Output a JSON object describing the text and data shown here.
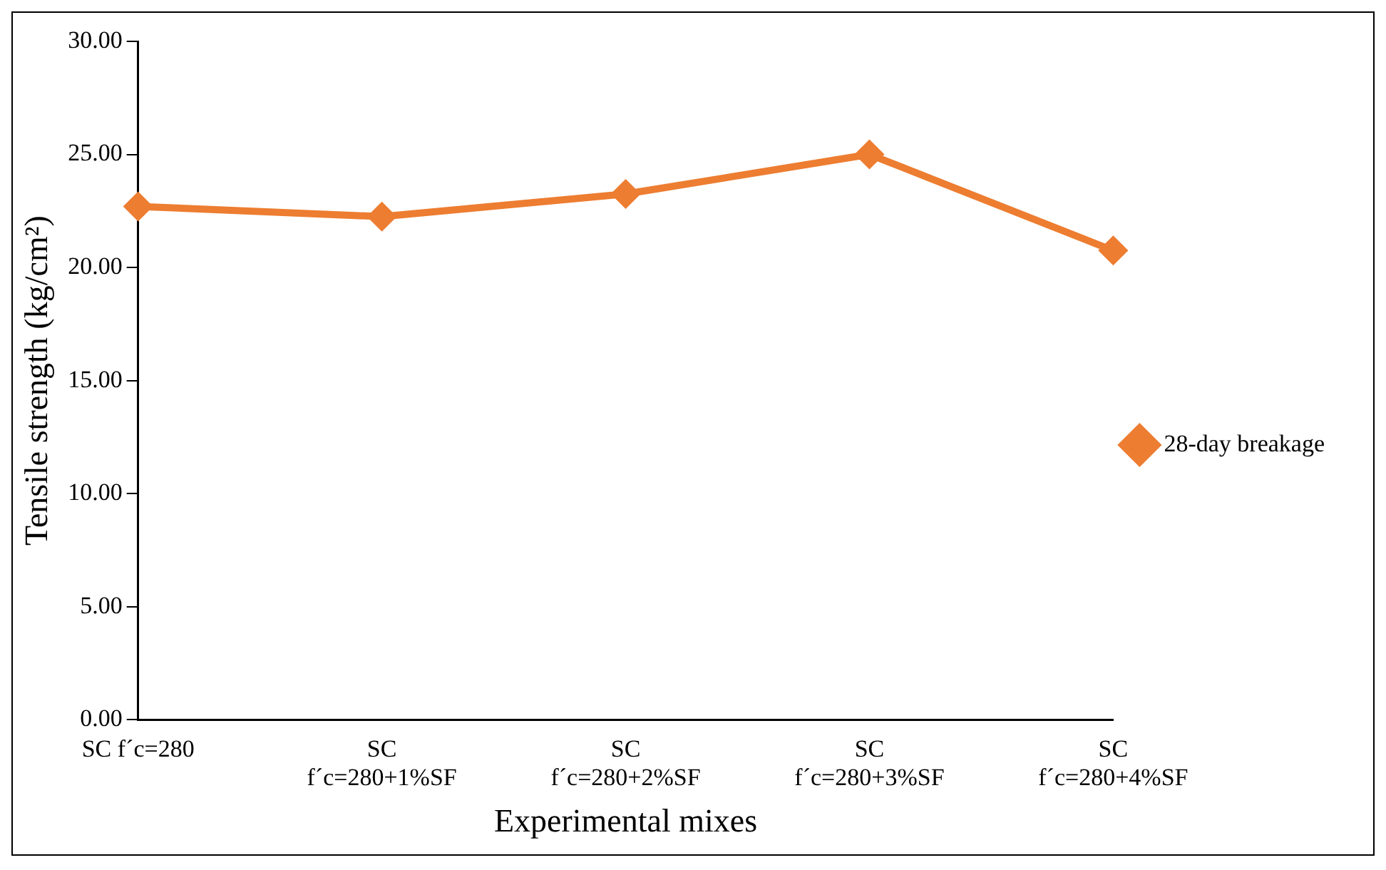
{
  "chart_data": {
    "type": "line",
    "xlabel": "Experimental mixes",
    "ylabel": "Tensile strength (kg/cm²)",
    "categories": [
      "SC f´c=280",
      "SC\nf´c=280+1%SF",
      "SC\nf´c=280+2%SF",
      "SC\nf´c=280+3%SF",
      "SC\nf´c=280+4%SF"
    ],
    "series": [
      {
        "name": "28-day breakage",
        "color": "#ed7d31",
        "values": [
          22.7,
          22.25,
          23.25,
          25.0,
          20.75
        ]
      }
    ],
    "ylim": [
      0,
      30
    ],
    "yticks": [
      {
        "value": 0,
        "label": "0.00"
      },
      {
        "value": 5,
        "label": "5.00"
      },
      {
        "value": 10,
        "label": "10.00"
      },
      {
        "value": 15,
        "label": "15.00"
      },
      {
        "value": 20,
        "label": "20.00"
      },
      {
        "value": 25,
        "label": "25.00"
      },
      {
        "value": 30,
        "label": "30.00"
      }
    ],
    "grid": false,
    "legend": "right",
    "marker": "diamond",
    "line_style": "solid"
  }
}
